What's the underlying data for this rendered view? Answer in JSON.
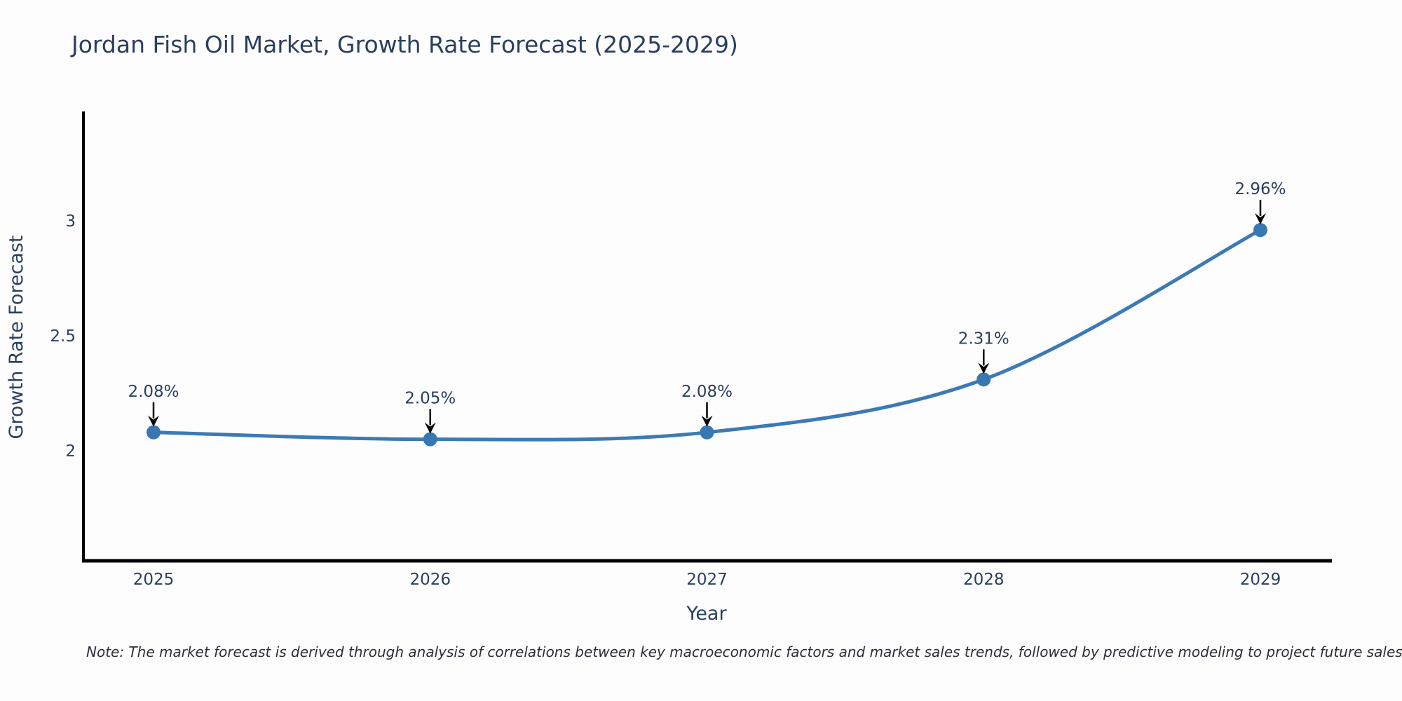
{
  "title": "Jordan Fish Oil Market, Growth Rate Forecast (2025-2029)",
  "note": "Note: The market forecast is derived through analysis of correlations between key macroeconomic factors and market sales trends, followed by predictive modeling to project future sales",
  "chart_data": {
    "type": "line",
    "line_shape": "spline",
    "title": "Jordan Fish Oil Market, Growth Rate Forecast (2025-2029)",
    "xlabel": "Year",
    "ylabel": "Growth Rate Forecast",
    "categories": [
      "2025",
      "2026",
      "2027",
      "2028",
      "2029"
    ],
    "values": [
      2.08,
      2.05,
      2.08,
      2.31,
      2.96
    ],
    "point_labels": [
      "2.08%",
      "2.05%",
      "2.08%",
      "2.31%",
      "2.96%"
    ],
    "yticks": [
      2,
      2.5,
      3
    ],
    "ytick_labels": [
      "2",
      "2.5",
      "3"
    ],
    "ylim": [
      1.52,
      3.48
    ],
    "grid": false,
    "legend_position": "none",
    "annotations_have_arrows": true,
    "colors": {
      "line": "#3d7ab5",
      "marker": "#3877b2",
      "axis": "#000000",
      "text": "#2a3f5f",
      "annotation_text": "#2a3f5f",
      "annotation_arrow": "#000000"
    }
  }
}
